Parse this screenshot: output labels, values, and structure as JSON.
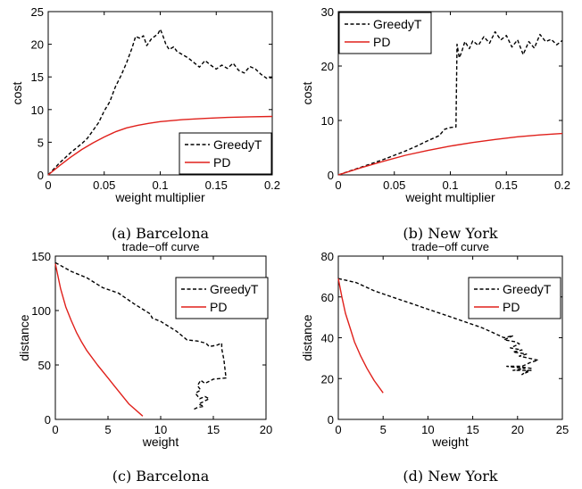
{
  "chart_data": [
    {
      "type": "line",
      "title": "",
      "xlabel": "weight multiplier",
      "ylabel": "cost",
      "xlim": [
        0,
        0.2
      ],
      "ylim": [
        0,
        25
      ],
      "xticks": [
        0,
        0.05,
        0.1,
        0.15,
        0.2
      ],
      "xtick_labels": [
        "0",
        "0.05",
        "0.1",
        "0.15",
        "0.2"
      ],
      "yticks": [
        0,
        5,
        10,
        15,
        20,
        25
      ],
      "ytick_labels": [
        "0",
        "5",
        "10",
        "15",
        "20",
        "25"
      ],
      "legend_position": "bottom-right",
      "caption": "(a)  Barcelona",
      "series": [
        {
          "name": "GreedyT",
          "color": "#000000",
          "dash": "dashed",
          "points": [
            [
              0,
              0
            ],
            [
              0.005,
              0.9
            ],
            [
              0.01,
              1.8
            ],
            [
              0.015,
              2.6
            ],
            [
              0.02,
              3.4
            ],
            [
              0.025,
              4.1
            ],
            [
              0.03,
              4.8
            ],
            [
              0.035,
              5.6
            ],
            [
              0.04,
              6.8
            ],
            [
              0.045,
              8.0
            ],
            [
              0.05,
              9.8
            ],
            [
              0.055,
              11.2
            ],
            [
              0.06,
              13.5
            ],
            [
              0.065,
              15.2
            ],
            [
              0.07,
              17.2
            ],
            [
              0.075,
              19.5
            ],
            [
              0.078,
              21.2
            ],
            [
              0.082,
              20.9
            ],
            [
              0.085,
              21.3
            ],
            [
              0.088,
              19.8
            ],
            [
              0.092,
              20.8
            ],
            [
              0.095,
              21.2
            ],
            [
              0.098,
              21.6
            ],
            [
              0.1,
              22.3
            ],
            [
              0.102,
              21.5
            ],
            [
              0.105,
              20.0
            ],
            [
              0.108,
              19.2
            ],
            [
              0.112,
              19.6
            ],
            [
              0.115,
              18.9
            ],
            [
              0.12,
              18.4
            ],
            [
              0.125,
              17.9
            ],
            [
              0.13,
              17.2
            ],
            [
              0.135,
              16.5
            ],
            [
              0.14,
              17.5
            ],
            [
              0.145,
              16.8
            ],
            [
              0.15,
              16.2
            ],
            [
              0.155,
              16.8
            ],
            [
              0.16,
              16.3
            ],
            [
              0.165,
              17.1
            ],
            [
              0.17,
              16.0
            ],
            [
              0.175,
              15.6
            ],
            [
              0.18,
              16.6
            ],
            [
              0.185,
              16.2
            ],
            [
              0.19,
              15.4
            ],
            [
              0.195,
              14.8
            ],
            [
              0.2,
              14.9
            ]
          ]
        },
        {
          "name": "PD",
          "color": "#e0201b",
          "dash": "solid",
          "points": [
            [
              0,
              0
            ],
            [
              0.01,
              1.4
            ],
            [
              0.02,
              2.7
            ],
            [
              0.03,
              3.9
            ],
            [
              0.04,
              4.9
            ],
            [
              0.05,
              5.8
            ],
            [
              0.06,
              6.6
            ],
            [
              0.07,
              7.2
            ],
            [
              0.08,
              7.6
            ],
            [
              0.09,
              7.9
            ],
            [
              0.1,
              8.15
            ],
            [
              0.12,
              8.45
            ],
            [
              0.14,
              8.65
            ],
            [
              0.16,
              8.8
            ],
            [
              0.18,
              8.9
            ],
            [
              0.2,
              8.95
            ]
          ]
        }
      ]
    },
    {
      "type": "line",
      "title": "",
      "xlabel": "weight multiplier",
      "ylabel": "cost",
      "xlim": [
        0,
        0.2
      ],
      "ylim": [
        0,
        30
      ],
      "xticks": [
        0,
        0.05,
        0.1,
        0.15,
        0.2
      ],
      "xtick_labels": [
        "0",
        "0.05",
        "0.1",
        "0.15",
        "0.2"
      ],
      "yticks": [
        0,
        10,
        20,
        30
      ],
      "ytick_labels": [
        "0",
        "10",
        "20",
        "30"
      ],
      "legend_position": "top-left",
      "caption": "(b)  New York",
      "series": [
        {
          "name": "GreedyT",
          "color": "#000000",
          "dash": "dashed",
          "points": [
            [
              0,
              0
            ],
            [
              0.01,
              0.7
            ],
            [
              0.02,
              1.4
            ],
            [
              0.03,
              2.1
            ],
            [
              0.04,
              2.8
            ],
            [
              0.05,
              3.6
            ],
            [
              0.06,
              4.4
            ],
            [
              0.07,
              5.3
            ],
            [
              0.08,
              6.3
            ],
            [
              0.09,
              7.2
            ],
            [
              0.095,
              8.4
            ],
            [
              0.1,
              8.7
            ],
            [
              0.105,
              8.8
            ],
            [
              0.106,
              24.0
            ],
            [
              0.108,
              21.5
            ],
            [
              0.11,
              22.5
            ],
            [
              0.113,
              24.5
            ],
            [
              0.117,
              23.2
            ],
            [
              0.12,
              24.6
            ],
            [
              0.125,
              23.8
            ],
            [
              0.13,
              25.4
            ],
            [
              0.135,
              24.2
            ],
            [
              0.14,
              26.3
            ],
            [
              0.145,
              24.8
            ],
            [
              0.15,
              25.6
            ],
            [
              0.155,
              23.5
            ],
            [
              0.16,
              24.8
            ],
            [
              0.165,
              22.1
            ],
            [
              0.17,
              24.5
            ],
            [
              0.175,
              23.3
            ],
            [
              0.18,
              25.8
            ],
            [
              0.185,
              24.5
            ],
            [
              0.19,
              24.9
            ],
            [
              0.195,
              23.9
            ],
            [
              0.2,
              24.7
            ]
          ]
        },
        {
          "name": "PD",
          "color": "#e0201b",
          "dash": "solid",
          "points": [
            [
              0,
              0
            ],
            [
              0.02,
              1.3
            ],
            [
              0.04,
              2.5
            ],
            [
              0.06,
              3.6
            ],
            [
              0.08,
              4.5
            ],
            [
              0.1,
              5.3
            ],
            [
              0.12,
              5.95
            ],
            [
              0.14,
              6.5
            ],
            [
              0.16,
              7.0
            ],
            [
              0.18,
              7.35
            ],
            [
              0.2,
              7.6
            ]
          ]
        }
      ]
    },
    {
      "type": "line",
      "title": "trade−off curve",
      "xlabel": "weight",
      "ylabel": "distance",
      "xlim": [
        0,
        20
      ],
      "ylim": [
        0,
        150
      ],
      "xticks": [
        0,
        5,
        10,
        15,
        20
      ],
      "xtick_labels": [
        "0",
        "5",
        "10",
        "15",
        "20"
      ],
      "yticks": [
        0,
        50,
        100,
        150
      ],
      "ytick_labels": [
        "0",
        "50",
        "100",
        "150"
      ],
      "legend_position": "top-right",
      "caption": "(c)  Barcelona",
      "series": [
        {
          "name": "GreedyT",
          "color": "#000000",
          "dash": "dashed",
          "points": [
            [
              0,
              144
            ],
            [
              1.5,
              136
            ],
            [
              3,
              130
            ],
            [
              4.5,
              121
            ],
            [
              6,
              116
            ],
            [
              7.5,
              106
            ],
            [
              9,
              97
            ],
            [
              9.2,
              93
            ],
            [
              10,
              90
            ],
            [
              11.5,
              81
            ],
            [
              12.5,
              73
            ],
            [
              13.5,
              72
            ],
            [
              14.3,
              70
            ],
            [
              14.6,
              67
            ],
            [
              15.3,
              68
            ],
            [
              15.8,
              70
            ],
            [
              15.8,
              65
            ],
            [
              16,
              55
            ],
            [
              16.2,
              38
            ],
            [
              15,
              37
            ],
            [
              14.2,
              33
            ],
            [
              13.8,
              36
            ],
            [
              13.5,
              31
            ],
            [
              13.8,
              27
            ],
            [
              13.3,
              24
            ],
            [
              13.7,
              19
            ],
            [
              14.2,
              21
            ],
            [
              14.6,
              19
            ],
            [
              13.6,
              14
            ],
            [
              14.1,
              12
            ],
            [
              13.5,
              11
            ],
            [
              13.1,
              9
            ]
          ]
        },
        {
          "name": "PD",
          "color": "#e0201b",
          "dash": "solid",
          "points": [
            [
              0,
              143
            ],
            [
              0.5,
              120
            ],
            [
              1,
              103
            ],
            [
              1.5,
              91
            ],
            [
              2,
              80
            ],
            [
              2.5,
              71
            ],
            [
              3,
              63
            ],
            [
              4,
              50
            ],
            [
              5,
              38
            ],
            [
              6,
              26
            ],
            [
              7,
              14
            ],
            [
              8.3,
              3
            ]
          ]
        }
      ]
    },
    {
      "type": "line",
      "title": "trade−off curve",
      "xlabel": "weight",
      "ylabel": "distance",
      "xlim": [
        0,
        25
      ],
      "ylim": [
        0,
        80
      ],
      "xticks": [
        0,
        5,
        10,
        15,
        20,
        25
      ],
      "xtick_labels": [
        "0",
        "5",
        "10",
        "15",
        "20",
        "25"
      ],
      "yticks": [
        0,
        20,
        40,
        60,
        80
      ],
      "ytick_labels": [
        "0",
        "20",
        "40",
        "60",
        "80"
      ],
      "legend_position": "top-right",
      "caption": "(d)  New York",
      "series": [
        {
          "name": "GreedyT",
          "color": "#000000",
          "dash": "dashed",
          "points": [
            [
              0,
              69
            ],
            [
              2,
              67
            ],
            [
              4,
              63
            ],
            [
              6,
              60
            ],
            [
              8,
              57
            ],
            [
              10,
              54
            ],
            [
              12,
              51
            ],
            [
              14,
              48
            ],
            [
              16,
              45
            ],
            [
              17.5,
              42
            ],
            [
              18.5,
              40
            ],
            [
              19.5,
              41
            ],
            [
              18.5,
              39
            ],
            [
              19.8,
              38
            ],
            [
              20.2,
              37
            ],
            [
              19.2,
              35
            ],
            [
              20.5,
              34
            ],
            [
              19.5,
              33
            ],
            [
              21,
              32
            ],
            [
              20.2,
              31
            ],
            [
              22.3,
              29
            ],
            [
              21.5,
              28
            ],
            [
              20.5,
              26
            ],
            [
              18.8,
              26
            ],
            [
              20.8,
              25
            ],
            [
              19.5,
              24
            ],
            [
              21.5,
              24
            ],
            [
              20.5,
              22
            ],
            [
              21.5,
              25
            ],
            [
              19.8,
              26
            ]
          ]
        },
        {
          "name": "PD",
          "color": "#e0201b",
          "dash": "solid",
          "points": [
            [
              0,
              69
            ],
            [
              0.4,
              60
            ],
            [
              0.8,
              52
            ],
            [
              1.3,
              45
            ],
            [
              1.8,
              38
            ],
            [
              2.5,
              31
            ],
            [
              3.2,
              25
            ],
            [
              4,
              19
            ],
            [
              5,
              13
            ]
          ]
        }
      ]
    }
  ]
}
